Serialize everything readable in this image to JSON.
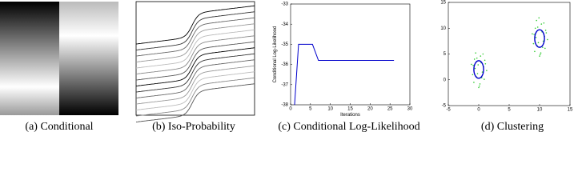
{
  "chart_data": [
    {
      "type": "image",
      "caption": "(a) Conditional"
    },
    {
      "type": "contour",
      "caption": "(b) Iso-Probability"
    },
    {
      "type": "line",
      "caption": "(c) Conditional Log-Likelihood",
      "xlabel": "Iterations",
      "ylabel": "Conditional Log-Likelihood",
      "x": [
        1,
        2,
        5.5,
        7,
        26
      ],
      "values": [
        -38,
        -35,
        -35,
        -35.8,
        -35.8
      ],
      "color": "#0000cc",
      "xlim": [
        0,
        30
      ],
      "ylim": [
        -38,
        -33
      ],
      "xticks": [
        0,
        5,
        10,
        15,
        20,
        25,
        30
      ],
      "yticks": [
        -38,
        -37,
        -36,
        -35,
        -34,
        -33
      ]
    },
    {
      "type": "scatter",
      "caption": "(d) Clustering",
      "color": "#33cc33",
      "ellipse_color": "#0000cc",
      "x": [
        -0.5,
        0.3,
        1.0,
        -1.2,
        0.8,
        -0.2,
        0.5,
        -0.8,
        1.3,
        0.1,
        -0.6,
        0.7,
        -1.0,
        0.4,
        0.9,
        -0.3,
        0.2,
        -0.9,
        1.1,
        -0.4,
        0.6,
        -0.1,
        0.0,
        -0.7,
        9.5,
        10.3,
        11.0,
        8.8,
        10.8,
        9.8,
        10.5,
        9.2,
        11.3,
        10.1,
        9.4,
        10.7,
        9.0,
        10.4,
        10.9,
        9.7,
        10.2,
        9.1,
        11.1,
        9.6,
        10.6,
        9.9,
        10.0,
        9.3
      ],
      "values": [
        5.2,
        4.6,
        3.8,
        3.0,
        2.5,
        1.2,
        0.4,
        -0.5,
        1.8,
        -1.2,
        2.2,
        5.0,
        1.0,
        3.3,
        0.1,
        4.2,
        -0.8,
        2.8,
        3.1,
        0.6,
        1.5,
        2.9,
        -1.5,
        4.0,
        11.5,
        10.8,
        9.6,
        8.9,
        8.4,
        7.2,
        6.3,
        5.5,
        7.8,
        4.9,
        8.2,
        11.0,
        7.0,
        9.3,
        6.1,
        10.2,
        5.2,
        8.8,
        9.1,
        6.6,
        7.5,
        12.0,
        4.6,
        10.0
      ],
      "ellipses": [
        {
          "cx": 0,
          "cy": 2,
          "rx": 0.8,
          "ry": 1.7
        },
        {
          "cx": 10,
          "cy": 8,
          "rx": 0.8,
          "ry": 1.7
        }
      ],
      "xlim": [
        -5,
        15
      ],
      "ylim": [
        -5,
        15
      ],
      "xticks": [
        -5,
        0,
        5,
        10,
        15
      ],
      "yticks": [
        -5,
        0,
        5,
        10,
        15
      ]
    }
  ]
}
